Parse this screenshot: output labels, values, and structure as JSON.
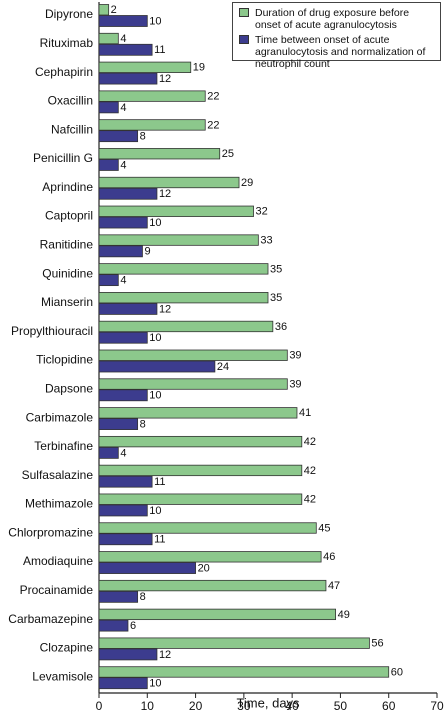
{
  "chart_data": {
    "type": "bar",
    "orientation": "horizontal",
    "x_label": "Time, days",
    "categories": [
      "Dipyrone",
      "Rituximab",
      "Cephapirin",
      "Oxacillin",
      "Nafcillin",
      "Penicillin G",
      "Aprindine",
      "Captopril",
      "Ranitidine",
      "Quinidine",
      "Mianserin",
      "Propylthiouracil",
      "Ticlopidine",
      "Dapsone",
      "Carbimazole",
      "Terbinafine",
      "Sulfasalazine",
      "Methimazole",
      "Chlorpromazine",
      "Amodiaquine",
      "Procainamide",
      "Carbamazepine",
      "Clozapine",
      "Levamisole"
    ],
    "series": [
      {
        "name": "Duration of drug exposure before onset of acute agranulocytosis",
        "color": "#8cc88c",
        "values": [
          2,
          4,
          19,
          22,
          22,
          25,
          29,
          32,
          33,
          35,
          35,
          36,
          39,
          39,
          41,
          42,
          42,
          42,
          45,
          46,
          47,
          49,
          56,
          60
        ]
      },
      {
        "name": "Time between onset of acute agranulocytosis and normalization of neutrophil count",
        "color": "#3c3c8e",
        "values": [
          10,
          11,
          12,
          4,
          8,
          4,
          12,
          10,
          9,
          4,
          12,
          10,
          24,
          10,
          8,
          4,
          11,
          10,
          11,
          20,
          8,
          6,
          12,
          10
        ]
      }
    ],
    "xlim": [
      0,
      70
    ],
    "xticks": [
      0,
      10,
      20,
      30,
      40,
      50,
      60,
      70
    ],
    "legend": "upper right",
    "grid": false
  }
}
